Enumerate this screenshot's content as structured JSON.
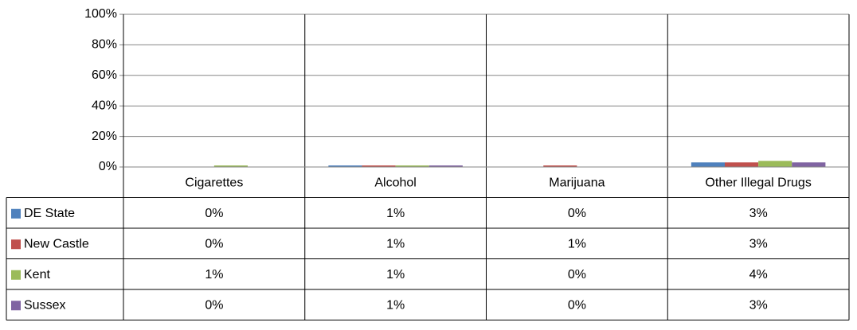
{
  "chart_data": {
    "type": "bar",
    "categories": [
      "Cigarettes",
      "Alcohol",
      "Marijuana",
      "Other Illegal Drugs"
    ],
    "series": [
      {
        "name": "DE State",
        "color": "#4f81bd",
        "values": [
          0,
          1,
          0,
          3
        ],
        "value_labels": [
          "0%",
          "1%",
          "0%",
          "3%"
        ]
      },
      {
        "name": "New Castle",
        "color": "#c0504d",
        "values": [
          0,
          1,
          1,
          3
        ],
        "value_labels": [
          "0%",
          "1%",
          "1%",
          "3%"
        ]
      },
      {
        "name": "Kent",
        "color": "#9bbb59",
        "values": [
          1,
          1,
          0,
          4
        ],
        "value_labels": [
          "1%",
          "1%",
          "0%",
          "4%"
        ]
      },
      {
        "name": "Sussex",
        "color": "#8064a2",
        "values": [
          0,
          1,
          0,
          3
        ],
        "value_labels": [
          "0%",
          "1%",
          "0%",
          "3%"
        ]
      }
    ],
    "ylim": [
      0,
      100
    ],
    "yticks": [
      {
        "value": 0,
        "label": "0%"
      },
      {
        "value": 20,
        "label": "20%"
      },
      {
        "value": 40,
        "label": "40%"
      },
      {
        "value": 60,
        "label": "60%"
      },
      {
        "value": 80,
        "label": "80%"
      },
      {
        "value": 100,
        "label": "100%"
      }
    ],
    "grid": true,
    "legend": "table"
  }
}
